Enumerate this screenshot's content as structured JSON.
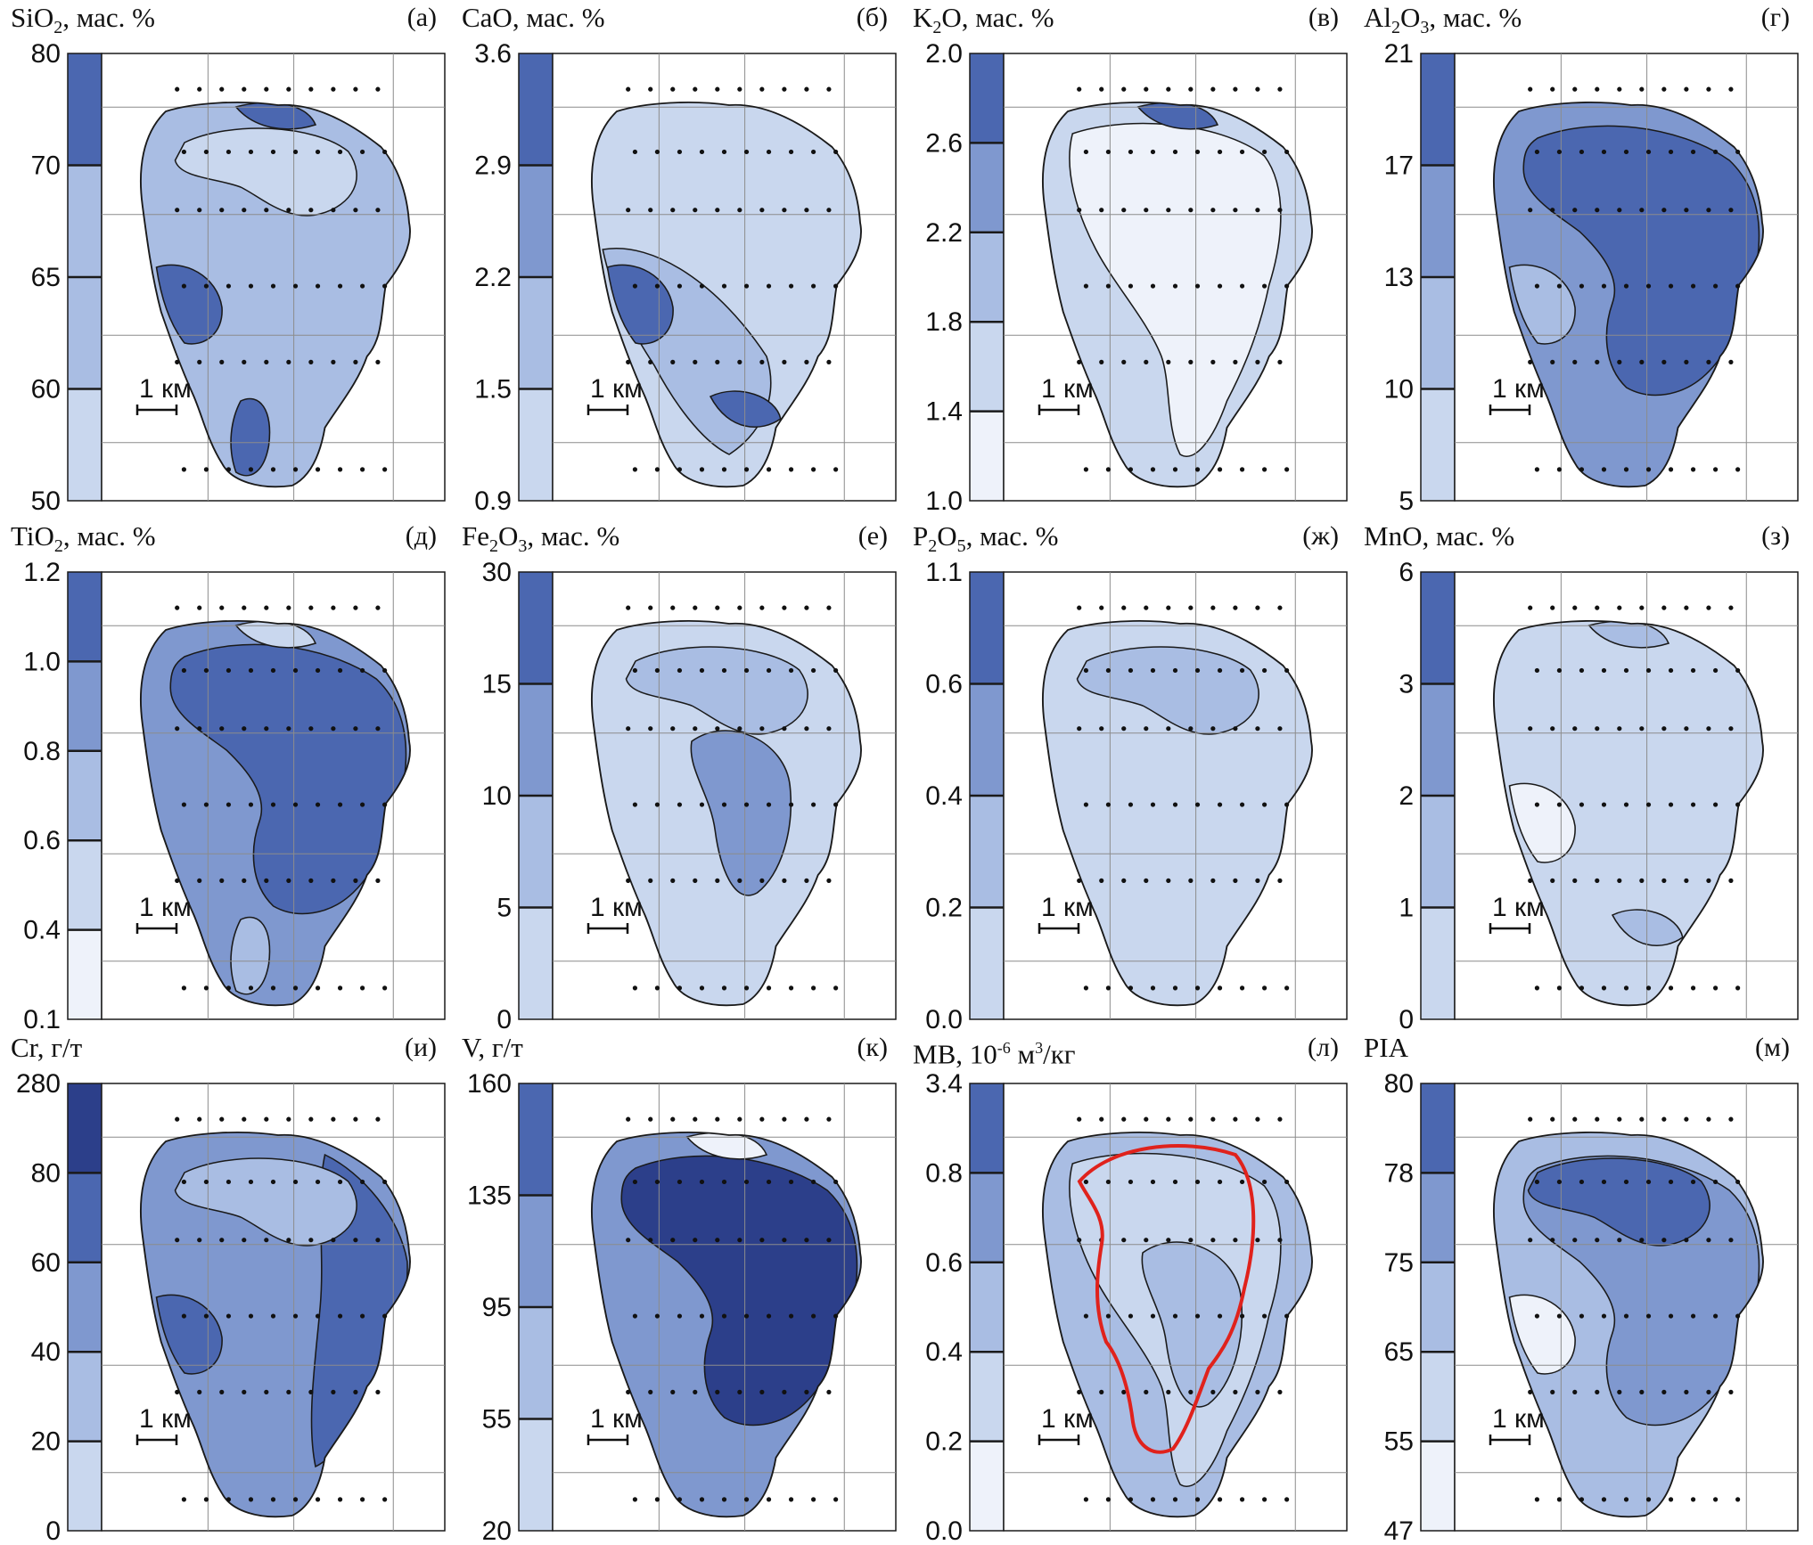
{
  "colors": {
    "c1": "#eef2fa",
    "c2": "#c9d7ee",
    "c3": "#a9bde3",
    "c4": "#7f98cf",
    "c5": "#4b67b0",
    "c6": "#2c3f8a",
    "outline": "#1a1a1a",
    "grid": "#8c8c8c",
    "red_line": "#e0221c"
  },
  "scale_bar_label": "1 км",
  "panels": [
    {
      "title_html": "SiO<sub>2</sub>, мас. %",
      "tag": "(а)",
      "ticks": [
        "80",
        "70",
        "65",
        "60",
        "50"
      ],
      "classes": [
        "c2",
        "c3",
        "c3",
        "c5"
      ],
      "fill": "c3",
      "blobs": [
        [
          "c2",
          "inner"
        ],
        [
          "c5",
          "sw"
        ],
        [
          "c5",
          "top"
        ],
        [
          "c5",
          "s"
        ]
      ]
    },
    {
      "title_html": "CaO, мас. %",
      "tag": "(б)",
      "ticks": [
        "3.6",
        "2.9",
        "2.2",
        "1.5",
        "0.9"
      ],
      "classes": [
        "c2",
        "c3",
        "c4",
        "c5"
      ],
      "fill": "c2",
      "blobs": [
        [
          "c3",
          "swbig"
        ],
        [
          "c5",
          "sw"
        ],
        [
          "c5",
          "s2"
        ]
      ]
    },
    {
      "title_html": "K<sub>2</sub>O, мас. %",
      "tag": "(в)",
      "ticks": [
        "2.0",
        "2.6",
        "2.2",
        "1.8",
        "1.4",
        "1.0"
      ],
      "classes": [
        "c1",
        "c2",
        "c3",
        "c4",
        "c5"
      ],
      "fill": "c2",
      "blobs": [
        [
          "c1",
          "core"
        ],
        [
          "c5",
          "top"
        ]
      ]
    },
    {
      "title_html": "Al<sub>2</sub>O<sub>3</sub>, мас. %",
      "tag": "(г)",
      "ticks": [
        "21",
        "17",
        "13",
        "10",
        "5"
      ],
      "classes": [
        "c2",
        "c3",
        "c4",
        "c5"
      ],
      "fill": "c4",
      "blobs": [
        [
          "c5",
          "big"
        ],
        [
          "c3",
          "sw"
        ]
      ]
    },
    {
      "title_html": "TiO<sub>2</sub>, мас. %",
      "tag": "(д)",
      "ticks": [
        "1.2",
        "1.0",
        "0.8",
        "0.6",
        "0.4",
        "0.1"
      ],
      "classes": [
        "c1",
        "c2",
        "c3",
        "c4",
        "c5"
      ],
      "fill": "c4",
      "blobs": [
        [
          "c5",
          "big"
        ],
        [
          "c3",
          "s"
        ],
        [
          "c2",
          "top"
        ]
      ]
    },
    {
      "title_html": "Fe<sub>2</sub>O<sub>3</sub>, мас. %",
      "tag": "(е)",
      "ticks": [
        "30",
        "15",
        "10",
        "5",
        "0"
      ],
      "classes": [
        "c2",
        "c3",
        "c4",
        "c5"
      ],
      "fill": "c2",
      "blobs": [
        [
          "c3",
          "inner"
        ],
        [
          "c4",
          "inner2"
        ]
      ]
    },
    {
      "title_html": "P<sub>2</sub>O<sub>5</sub>, мас. %",
      "tag": "(ж)",
      "ticks": [
        "1.1",
        "0.6",
        "0.4",
        "0.2",
        "0.0"
      ],
      "classes": [
        "c2",
        "c3",
        "c4",
        "c5"
      ],
      "fill": "c2",
      "blobs": [
        [
          "c3",
          "inner"
        ]
      ]
    },
    {
      "title_html": "MnO, мас. %",
      "tag": "(з)",
      "ticks": [
        "6",
        "3",
        "2",
        "1",
        "0"
      ],
      "classes": [
        "c2",
        "c3",
        "c4",
        "c5"
      ],
      "fill": "c2",
      "blobs": [
        [
          "c3",
          "top"
        ],
        [
          "c1",
          "sw"
        ],
        [
          "c3",
          "s2"
        ]
      ]
    },
    {
      "title_html": "Cr, г/т",
      "tag": "(и)",
      "ticks": [
        "280",
        "80",
        "60",
        "40",
        "20",
        "0"
      ],
      "classes": [
        "c2",
        "c3",
        "c4",
        "c5",
        "c6"
      ],
      "fill": "c4",
      "blobs": [
        [
          "c5",
          "east"
        ],
        [
          "c3",
          "inner"
        ],
        [
          "c5",
          "sw"
        ]
      ]
    },
    {
      "title_html": "V, г/т",
      "tag": "(к)",
      "ticks": [
        "160",
        "135",
        "95",
        "55",
        "20"
      ],
      "classes": [
        "c2",
        "c3",
        "c4",
        "c5"
      ],
      "fill": "c4",
      "blobs": [
        [
          "c6",
          "big"
        ],
        [
          "c1",
          "top"
        ]
      ]
    },
    {
      "title_html": "MB, 10<sup>-6</sup> м<sup>3</sup>/кг",
      "tag": "(л)",
      "ticks": [
        "3.4",
        "0.8",
        "0.6",
        "0.4",
        "0.2",
        "0.0"
      ],
      "classes": [
        "c1",
        "c2",
        "c3",
        "c4",
        "c5"
      ],
      "fill": "c3",
      "blobs": [
        [
          "c2",
          "core"
        ],
        [
          "c3",
          "inner2"
        ]
      ]
    },
    {
      "title_html": "PIA",
      "tag": "(м)",
      "ticks": [
        "80",
        "78",
        "75",
        "65",
        "55",
        "47"
      ],
      "classes": [
        "c1",
        "c2",
        "c3",
        "c4",
        "c5"
      ],
      "fill": "c3",
      "blobs": [
        [
          "c4",
          "big"
        ],
        [
          "c5",
          "inner"
        ],
        [
          "c1",
          "sw"
        ]
      ]
    }
  ]
}
